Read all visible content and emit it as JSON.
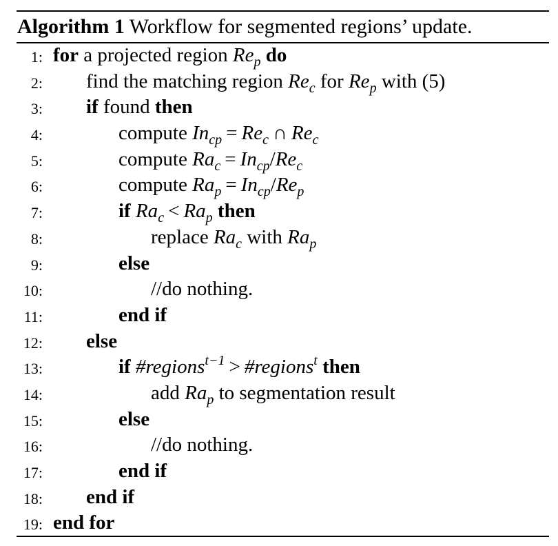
{
  "algorithm": {
    "label": "Algorithm 1",
    "title": "Workflow for segmented regions’ update.",
    "kw": {
      "for": "for",
      "do": "do",
      "if": "if",
      "then": "then",
      "else": "else",
      "end_if": "end if",
      "end_for": "end for"
    },
    "numbers": [
      "1:",
      "2:",
      "3:",
      "4:",
      "5:",
      "6:",
      "7:",
      "8:",
      "9:",
      "10:",
      "11:",
      "12:",
      "13:",
      "14:",
      "15:",
      "16:",
      "17:",
      "18:",
      "19:"
    ],
    "text": {
      "l1_a": "a projected region",
      "l2_a": "find the matching region",
      "l2_b": "for",
      "l2_c": "with (5)",
      "l3_a": "found",
      "compute": "compute",
      "l8_a": "replace",
      "l8_b": "with",
      "nothing": "//do nothing.",
      "l14_a": "add",
      "l14_b": "to segmentation result"
    },
    "math": {
      "Re": "Re",
      "Ra": "Ra",
      "In": "In",
      "p": "p",
      "c": "c",
      "cp": "cp",
      "eq": "=",
      "cap": "∩",
      "slash": "/",
      "lt": "<",
      "gt": ">",
      "regions": "#regions",
      "t": "t",
      "tminus": "t−1"
    }
  }
}
